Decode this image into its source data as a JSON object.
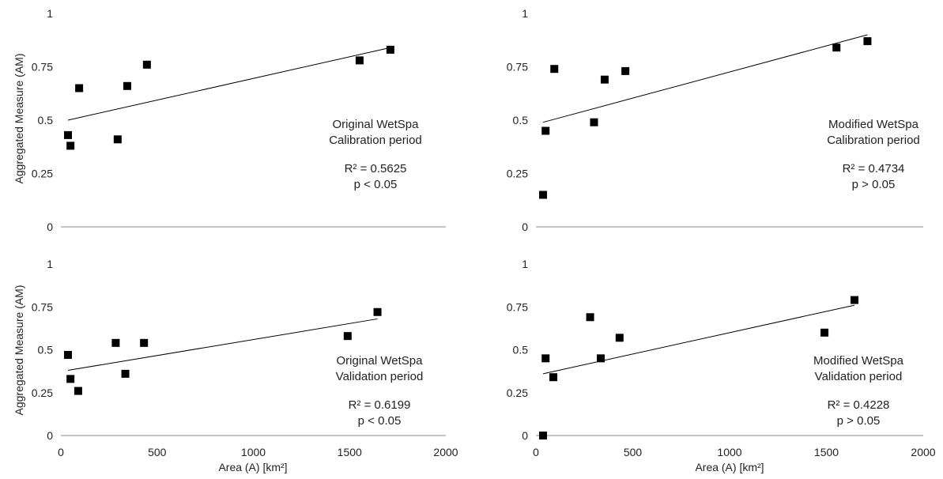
{
  "shared": {
    "ylabel": "Aggregated Measure (AM)",
    "xlabel": "Area (A) [km²]",
    "marker_color": "#000000",
    "trendline_color": "#000000"
  },
  "chart_data": [
    {
      "type": "scatter",
      "annotation": [
        "Original WetSpa",
        "Calibration period",
        "R² = 0.5625",
        "p < 0.05"
      ],
      "xlim": [
        0,
        2000
      ],
      "ylim": [
        0,
        1
      ],
      "yticks": [
        "0",
        "0.25",
        "0.5",
        "0.75",
        "1"
      ],
      "xticks": [],
      "grid": false,
      "points": [
        [
          37,
          0.43
        ],
        [
          50,
          0.38
        ],
        [
          95,
          0.65
        ],
        [
          295,
          0.41
        ],
        [
          345,
          0.66
        ],
        [
          447,
          0.76
        ],
        [
          1552,
          0.78
        ],
        [
          1712,
          0.83
        ]
      ],
      "trendline": [
        [
          37,
          0.5
        ],
        [
          1712,
          0.84
        ]
      ]
    },
    {
      "type": "scatter",
      "annotation": [
        "Modified WetSpa",
        "Calibration period",
        "R² = 0.4734",
        "p > 0.05"
      ],
      "xlim": [
        0,
        2000
      ],
      "ylim": [
        0,
        1
      ],
      "yticks": [
        "0",
        "0.25",
        "0.5",
        "0.75",
        "1"
      ],
      "xticks": [],
      "grid": false,
      "points": [
        [
          37,
          0.15
        ],
        [
          50,
          0.45
        ],
        [
          95,
          0.74
        ],
        [
          300,
          0.49
        ],
        [
          355,
          0.69
        ],
        [
          462,
          0.73
        ],
        [
          1552,
          0.84
        ],
        [
          1712,
          0.87
        ]
      ],
      "trendline": [
        [
          37,
          0.49
        ],
        [
          1712,
          0.9
        ]
      ]
    },
    {
      "type": "scatter",
      "annotation": [
        "Original WetSpa",
        "Validation period",
        "R² = 0.6199",
        "p < 0.05"
      ],
      "xlim": [
        0,
        2000
      ],
      "ylim": [
        0,
        1
      ],
      "yticks": [
        "0",
        "0.25",
        "0.5",
        "0.75",
        "1"
      ],
      "xticks": [
        "0",
        "500",
        "1000",
        "1500",
        "2000"
      ],
      "grid": false,
      "points": [
        [
          37,
          0.47
        ],
        [
          50,
          0.33
        ],
        [
          90,
          0.26
        ],
        [
          285,
          0.54
        ],
        [
          335,
          0.36
        ],
        [
          432,
          0.54
        ],
        [
          1490,
          0.58
        ],
        [
          1645,
          0.72
        ]
      ],
      "trendline": [
        [
          37,
          0.38
        ],
        [
          1645,
          0.68
        ]
      ]
    },
    {
      "type": "scatter",
      "annotation": [
        "Modified WetSpa",
        "Validation period",
        "R² = 0.4228",
        "p > 0.05"
      ],
      "xlim": [
        0,
        2000
      ],
      "ylim": [
        0,
        1
      ],
      "yticks": [
        "0",
        "0.25",
        "0.5",
        "0.75",
        "1"
      ],
      "xticks": [
        "0",
        "500",
        "1000",
        "1500",
        "2000"
      ],
      "grid": false,
      "points": [
        [
          37,
          0.0
        ],
        [
          50,
          0.45
        ],
        [
          90,
          0.34
        ],
        [
          280,
          0.69
        ],
        [
          335,
          0.45
        ],
        [
          432,
          0.57
        ],
        [
          1490,
          0.6
        ],
        [
          1645,
          0.79
        ]
      ],
      "trendline": [
        [
          37,
          0.36
        ],
        [
          1645,
          0.76
        ]
      ]
    }
  ]
}
